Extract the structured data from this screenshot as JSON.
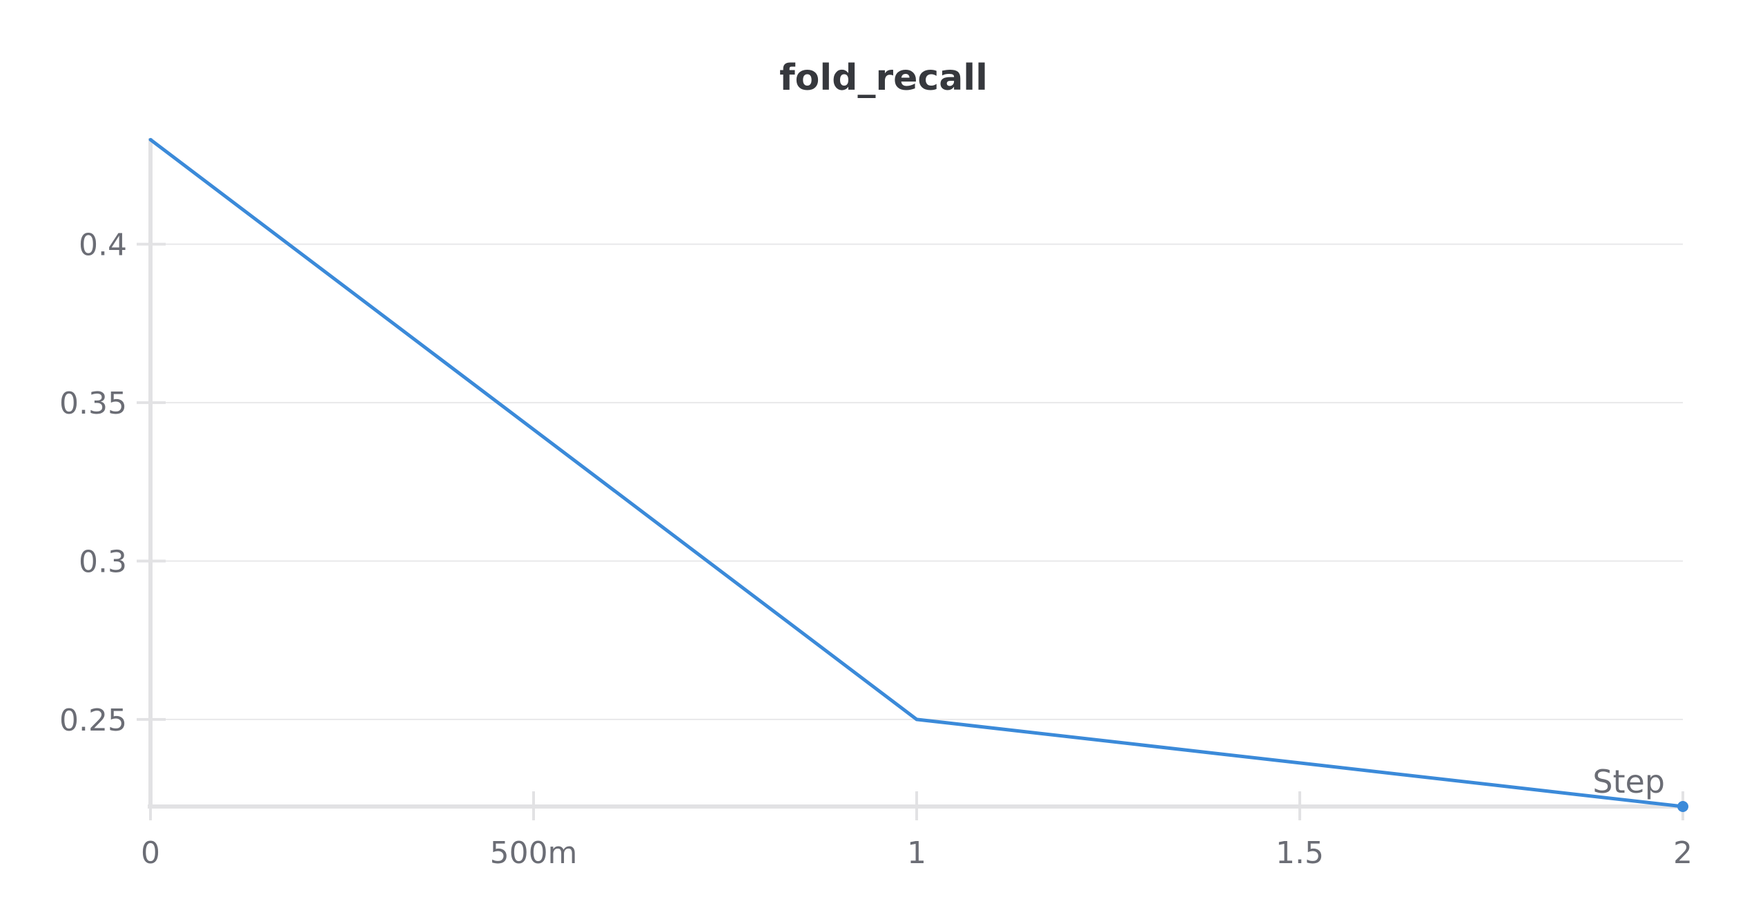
{
  "chart_data": {
    "type": "line",
    "title": "fold_recall",
    "xlabel": "Step",
    "ylabel": "",
    "x": [
      0,
      1,
      2
    ],
    "series": [
      {
        "values": [
          0.433,
          0.25,
          0.2225
        ]
      }
    ],
    "xlim": [
      0,
      2
    ],
    "ylim": [
      0.2225,
      0.4335
    ],
    "x_ticks": [
      0,
      0.5,
      1,
      1.5,
      2
    ],
    "x_tick_labels": [
      "0",
      "500m",
      "1",
      "1.5",
      "2"
    ],
    "y_ticks": [
      0.25,
      0.3,
      0.35,
      0.4
    ],
    "y_tick_labels": [
      "0.25",
      "0.3",
      "0.35",
      "0.4"
    ],
    "grid": true,
    "legend": "none",
    "colors": {
      "line": "#3b8ad9",
      "grid": "#e8e8ea",
      "axis": "#e2e2e4",
      "text": "#6b6d75",
      "title": "#36383d"
    }
  }
}
